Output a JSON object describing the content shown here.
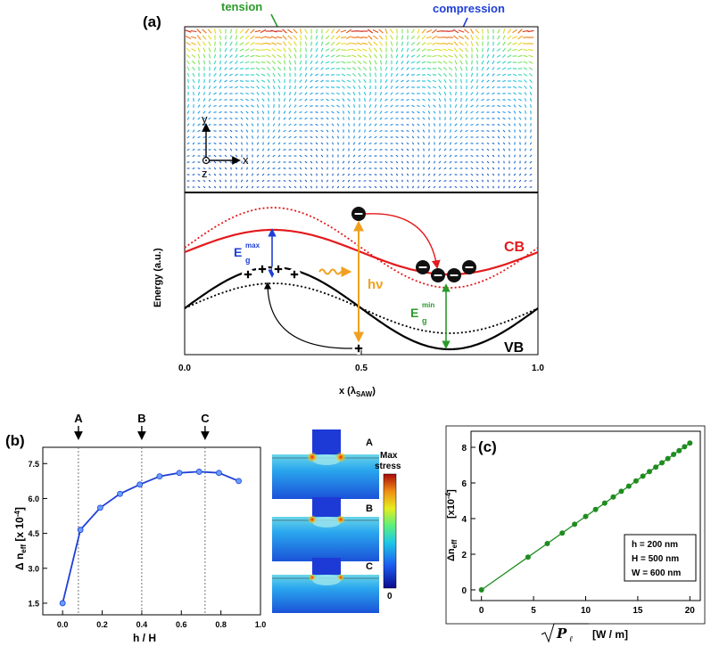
{
  "panel_a": {
    "label": "(a)",
    "tension_label": "tension",
    "compression_label": "compression",
    "axes_y": "y",
    "axes_x": "x",
    "axes_z": "z",
    "ylabel": "Energy (a.u.)",
    "xlabel_main": "x (λ",
    "xlabel_sub": "SAW",
    "xlabel_close": ")",
    "xticks": [
      "0.0",
      "0.5",
      "1.0"
    ],
    "cb_label": "CB",
    "vb_label": "VB",
    "hv_label": "hν",
    "egmax_main": "E",
    "egmax_sub": "g",
    "egmax_sup": "max",
    "egmin_main": "E",
    "egmin_sub": "g",
    "egmin_sup": "min",
    "colors": {
      "cb": "#e41a1c",
      "vb": "#000000",
      "hv": "#f0a020",
      "egmax": "#1f3fd6",
      "egmin": "#2a9a2a",
      "tension": "#2a9a2a",
      "compression": "#1f3fd6"
    }
  },
  "panel_b": {
    "label": "(b)",
    "xlabel": "h / H",
    "ylabel_main": "Δ n",
    "ylabel_sub": "eff",
    "ylabel_unit": " [x 10",
    "ylabel_exp": "-4",
    "ylabel_close": "]",
    "markers": [
      "A",
      "B",
      "C"
    ],
    "map_labels": [
      "A",
      "B",
      "C"
    ],
    "colorbar_top1": "Max",
    "colorbar_top2": "stress",
    "colorbar_bottom": "0",
    "xticks": [
      "0.0",
      "0.2",
      "0.4",
      "0.6",
      "0.8",
      "1.0"
    ],
    "yticks": [
      "1.5",
      "3.0",
      "4.5",
      "6.0",
      "7.5"
    ],
    "color": "#1f3fd6"
  },
  "panel_c": {
    "label": "(c)",
    "xlabel_unit": "[W / m]",
    "xlabel_var": "P",
    "xlabel_sub": "ℓ",
    "ylabel_main": "Δn",
    "ylabel_sub": "eff",
    "ylabel_unit": "[x10",
    "ylabel_exp": "-4",
    "ylabel_close": "]",
    "xticks": [
      "0",
      "5",
      "10",
      "15",
      "20"
    ],
    "yticks": [
      "0",
      "2",
      "4",
      "6",
      "8"
    ],
    "legend": [
      "h = 200 nm",
      "H = 500 nm",
      "W = 600 nm"
    ],
    "color": "#1e8c1e"
  },
  "chart_data": [
    {
      "type": "line",
      "title": "",
      "xlabel": "h / H",
      "ylabel": "Δ n_eff [x 10^-4]",
      "xlim": [
        -0.1,
        1.0
      ],
      "ylim": [
        1.0,
        8.2
      ],
      "x": [
        0.0,
        0.09,
        0.19,
        0.29,
        0.39,
        0.49,
        0.59,
        0.69,
        0.79,
        0.89
      ],
      "series": [
        {
          "name": "",
          "values": [
            1.5,
            4.65,
            5.6,
            6.2,
            6.6,
            6.95,
            7.1,
            7.15,
            7.1,
            6.75
          ]
        }
      ],
      "annotations": [
        {
          "text": "A",
          "x": 0.08
        },
        {
          "text": "B",
          "x": 0.4
        },
        {
          "text": "C",
          "x": 0.72
        }
      ]
    },
    {
      "type": "line",
      "title": "",
      "xlabel": "sqrt(P_l) [W / m]",
      "ylabel": "Δn_eff [x10^-4]",
      "xlim": [
        -1,
        21
      ],
      "ylim": [
        -0.6,
        8.9
      ],
      "x": [
        0,
        4.47,
        6.32,
        7.75,
        8.94,
        10,
        10.95,
        11.83,
        12.65,
        13.42,
        14.14,
        14.83,
        15.49,
        16.12,
        16.73,
        17.32,
        17.89,
        18.44,
        18.97,
        19.49,
        20
      ],
      "series": [
        {
          "name": "",
          "values": [
            0,
            1.84,
            2.6,
            3.19,
            3.68,
            4.12,
            4.51,
            4.87,
            5.21,
            5.53,
            5.82,
            6.11,
            6.38,
            6.64,
            6.89,
            7.13,
            7.37,
            7.6,
            7.81,
            8.03,
            8.24
          ]
        }
      ]
    }
  ]
}
